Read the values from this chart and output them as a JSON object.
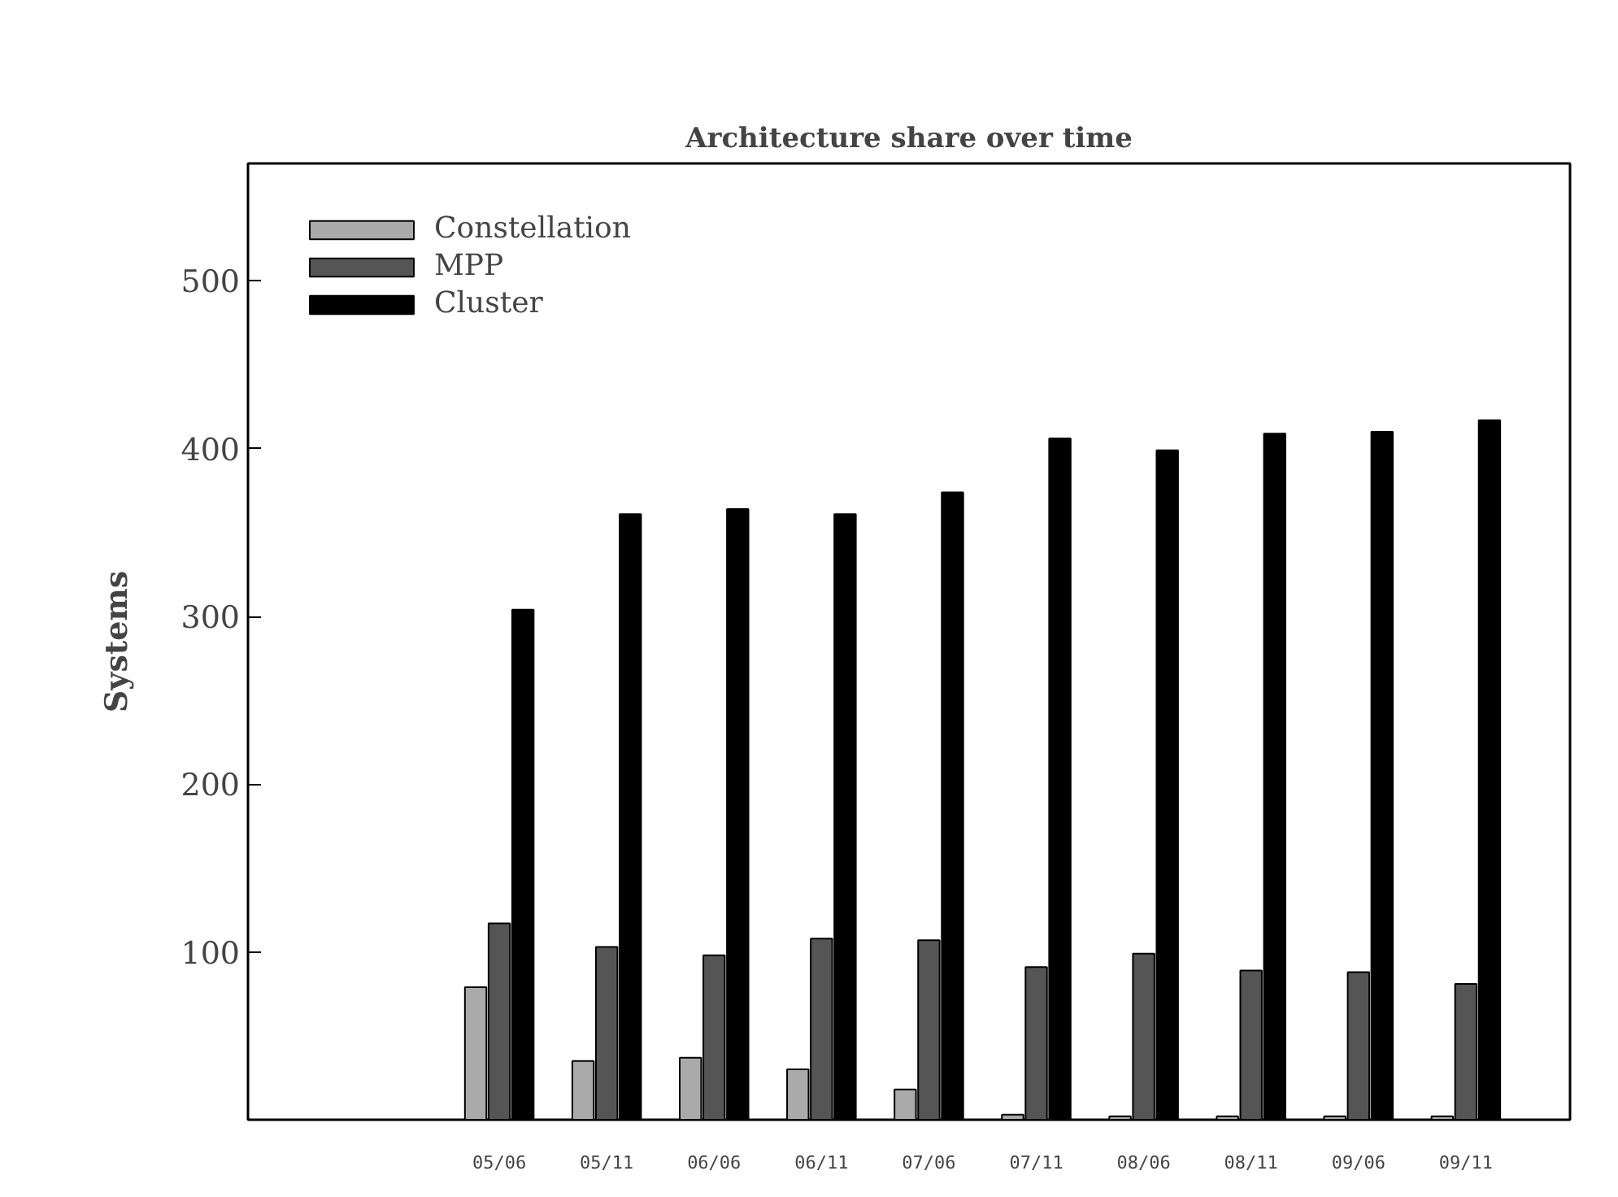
{
  "chart_data": {
    "type": "bar",
    "title": "Architecture share over time",
    "ylabel": "Systems",
    "categories": [
      "05/06",
      "05/11",
      "06/06",
      "06/11",
      "07/06",
      "07/11",
      "08/06",
      "08/11",
      "09/06",
      "09/11"
    ],
    "series": [
      {
        "name": "Constellation",
        "color": "#aaaaaa",
        "values": [
          79,
          35,
          37,
          30,
          18,
          3,
          2,
          2,
          2,
          2
        ]
      },
      {
        "name": "MPP",
        "color": "#555555",
        "values": [
          117,
          103,
          98,
          108,
          107,
          91,
          99,
          89,
          88,
          81
        ]
      },
      {
        "name": "Cluster",
        "color": "#000000",
        "values": [
          304,
          361,
          364,
          361,
          374,
          406,
          399,
          409,
          410,
          417
        ]
      }
    ],
    "ylim": [
      0,
      570
    ],
    "yticks": [
      100,
      200,
      300,
      400,
      500
    ],
    "grid": false,
    "legend": "top left"
  }
}
